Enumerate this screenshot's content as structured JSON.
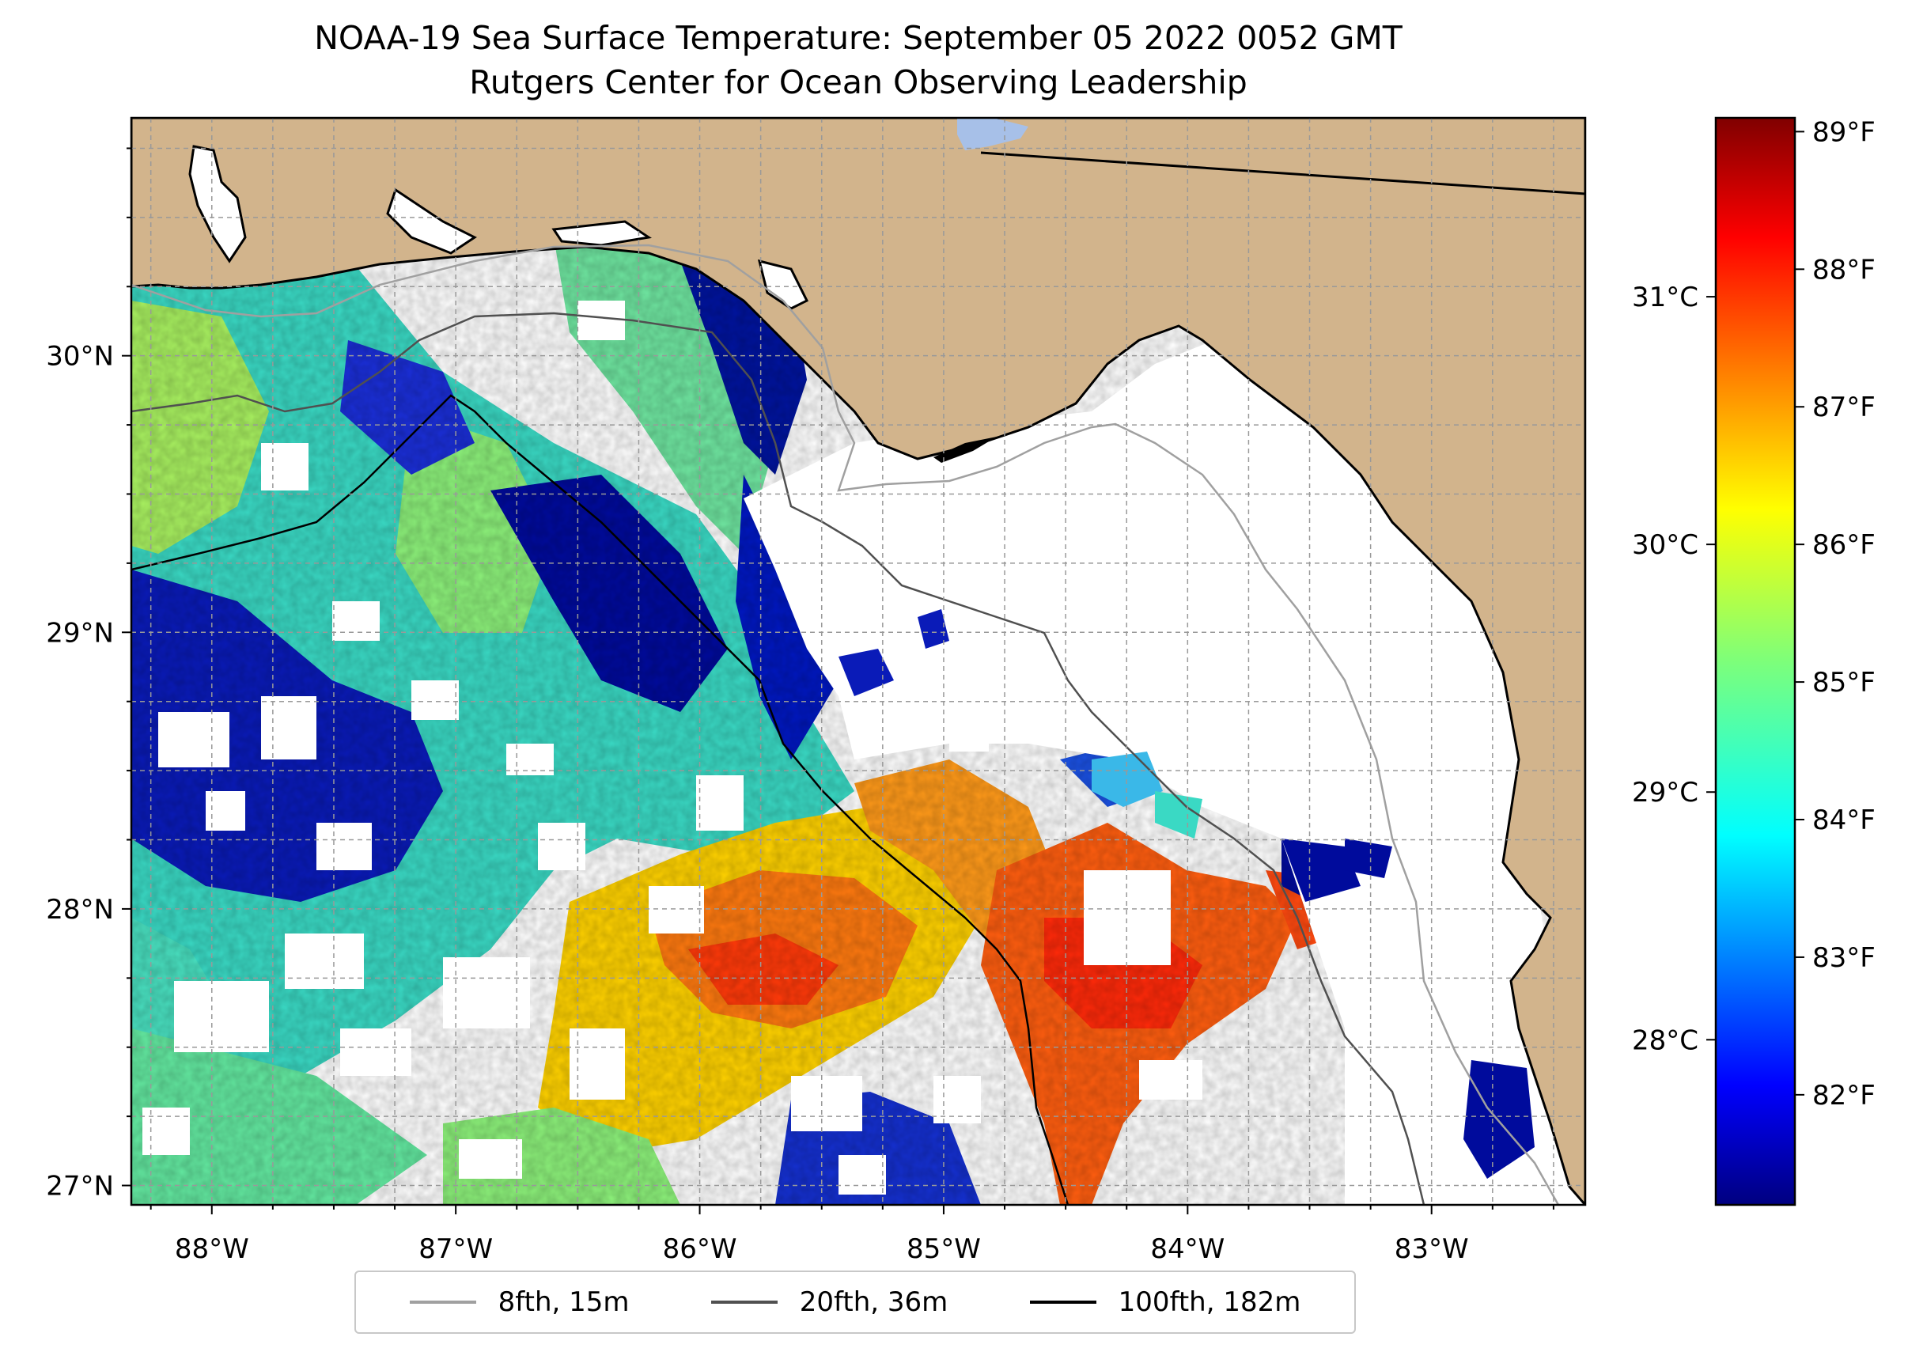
{
  "title": "NOAA-19 Sea Surface Temperature: September 05 2022 0052 GMT",
  "subtitle": "Rutgers Center for Ocean Observing Leadership",
  "map": {
    "lon_range": [
      -88.33,
      -82.37
    ],
    "lat_range": [
      26.93,
      30.86
    ],
    "lon_ticks": [
      {
        "value": -88,
        "label": "88°W"
      },
      {
        "value": -87,
        "label": "87°W"
      },
      {
        "value": -86,
        "label": "86°W"
      },
      {
        "value": -85,
        "label": "85°W"
      },
      {
        "value": -84,
        "label": "84°W"
      },
      {
        "value": -83,
        "label": "83°W"
      }
    ],
    "lat_ticks": [
      {
        "value": 27,
        "label": "27°N"
      },
      {
        "value": 28,
        "label": "28°N"
      },
      {
        "value": 29,
        "label": "29°N"
      },
      {
        "value": 30,
        "label": "30°N"
      }
    ],
    "gridlines": true,
    "land_color": "#D2B48C",
    "ocean_no_data_color": "#ffffff",
    "colormap": "jet"
  },
  "colorbar": {
    "fahrenheit_range": [
      81.2,
      89.1
    ],
    "celsius_ticks": [
      {
        "value": 28,
        "label": "28°C"
      },
      {
        "value": 29,
        "label": "29°C"
      },
      {
        "value": 30,
        "label": "30°C"
      },
      {
        "value": 31,
        "label": "31°C"
      }
    ],
    "fahrenheit_ticks": [
      {
        "value": 82,
        "label": "82°F"
      },
      {
        "value": 83,
        "label": "83°F"
      },
      {
        "value": 84,
        "label": "84°F"
      },
      {
        "value": 85,
        "label": "85°F"
      },
      {
        "value": 86,
        "label": "86°F"
      },
      {
        "value": 87,
        "label": "87°F"
      },
      {
        "value": 88,
        "label": "88°F"
      },
      {
        "value": 89,
        "label": "89°F"
      }
    ]
  },
  "legend": {
    "placement": "bottom-center",
    "items": [
      {
        "label": "8fth, 15m",
        "color": "#a0a0a0"
      },
      {
        "label": "20fth, 36m",
        "color": "#505050"
      },
      {
        "label": "100fth, 182m",
        "color": "#000000"
      }
    ]
  }
}
